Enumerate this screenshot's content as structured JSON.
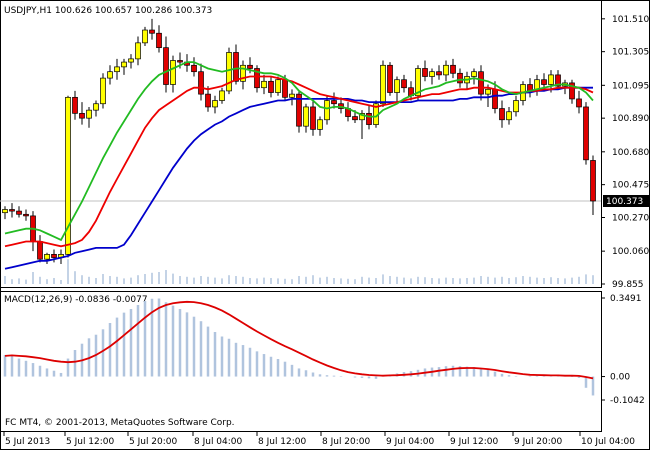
{
  "window": {
    "symbol_header": "USDJPY,H1  100.626 100.657 100.286 100.373",
    "copyright": "FC MT4, © 2001-2013, MetaQuotes Software Corp."
  },
  "colors": {
    "bull_candle": "#ffff00",
    "bear_candle": "#e00000",
    "candle_outline": "#000000",
    "ma_fast": "#22bb22",
    "ma_mid": "#ee0000",
    "ma_slow": "#0000cc",
    "volume": "#b0c4de",
    "macd_hist": "#b0c4de",
    "macd_signal": "#dd0000",
    "price_line": "#c0c0c0"
  },
  "chart_data": [
    {
      "type": "candlestick",
      "title": "USDJPY,H1  100.626 100.657 100.286 100.373",
      "ylim": [
        99.855,
        101.59
      ],
      "y_ticks": [
        "101.510",
        "101.305",
        "101.095",
        "100.890",
        "100.680",
        "100.475",
        "100.270",
        "100.060",
        "99.855"
      ],
      "current_price": "100.373",
      "x_ticks": [
        "5 Jul 2013",
        "5 Jul 12:00",
        "5 Jul 20:00",
        "8 Jul 04:00",
        "8 Jul 12:00",
        "8 Jul 20:00",
        "9 Jul 04:00",
        "9 Jul 12:00",
        "9 Jul 20:00",
        "10 Jul 04:00"
      ],
      "candles_ohlc": [
        [
          100.3,
          100.34,
          100.26,
          100.32
        ],
        [
          100.32,
          100.36,
          100.27,
          100.31
        ],
        [
          100.31,
          100.34,
          100.27,
          100.29
        ],
        [
          100.29,
          100.32,
          100.25,
          100.28
        ],
        [
          100.28,
          100.31,
          100.06,
          100.12
        ],
        [
          100.12,
          100.16,
          99.99,
          100.01
        ],
        [
          100.01,
          100.05,
          99.98,
          100.04
        ],
        [
          100.04,
          100.07,
          99.99,
          100.02
        ],
        [
          100.02,
          100.07,
          99.98,
          100.04
        ],
        [
          100.04,
          101.03,
          100.02,
          101.02
        ],
        [
          101.02,
          101.06,
          100.88,
          100.92
        ],
        [
          100.92,
          100.99,
          100.85,
          100.89
        ],
        [
          100.89,
          100.96,
          100.83,
          100.94
        ],
        [
          100.94,
          101.0,
          100.9,
          100.98
        ],
        [
          100.98,
          101.17,
          100.95,
          101.14
        ],
        [
          101.14,
          101.22,
          101.1,
          101.18
        ],
        [
          101.18,
          101.26,
          101.13,
          101.21
        ],
        [
          101.21,
          101.26,
          101.16,
          101.24
        ],
        [
          101.24,
          101.29,
          101.2,
          101.26
        ],
        [
          101.26,
          101.4,
          101.22,
          101.36
        ],
        [
          101.36,
          101.46,
          101.34,
          101.44
        ],
        [
          101.44,
          101.51,
          101.38,
          101.42
        ],
        [
          101.42,
          101.47,
          101.3,
          101.33
        ],
        [
          101.33,
          101.4,
          101.05,
          101.1
        ],
        [
          101.1,
          101.28,
          101.05,
          101.25
        ],
        [
          101.25,
          101.3,
          101.2,
          101.24
        ],
        [
          101.24,
          101.29,
          101.18,
          101.22
        ],
        [
          101.22,
          101.27,
          101.15,
          101.18
        ],
        [
          101.18,
          101.23,
          101.0,
          101.04
        ],
        [
          101.04,
          101.09,
          100.93,
          100.96
        ],
        [
          100.96,
          101.03,
          100.92,
          101.0
        ],
        [
          101.0,
          101.08,
          100.98,
          101.06
        ],
        [
          101.06,
          101.33,
          101.04,
          101.3
        ],
        [
          101.3,
          101.35,
          101.1,
          101.12
        ],
        [
          101.12,
          101.25,
          101.07,
          101.22
        ],
        [
          101.22,
          101.27,
          101.17,
          101.2
        ],
        [
          101.2,
          101.22,
          101.05,
          101.08
        ],
        [
          101.08,
          101.16,
          101.04,
          101.12
        ],
        [
          101.12,
          101.15,
          101.02,
          101.05
        ],
        [
          101.05,
          101.15,
          101.03,
          101.13
        ],
        [
          101.13,
          101.16,
          101.0,
          101.02
        ],
        [
          101.02,
          101.07,
          100.97,
          101.04
        ],
        [
          101.04,
          101.06,
          100.8,
          100.84
        ],
        [
          100.84,
          100.98,
          100.8,
          100.96
        ],
        [
          100.96,
          101.0,
          100.78,
          100.82
        ],
        [
          100.82,
          100.9,
          100.78,
          100.88
        ],
        [
          100.88,
          101.03,
          100.85,
          101.0
        ],
        [
          101.0,
          101.05,
          100.95,
          100.98
        ],
        [
          100.98,
          101.02,
          100.92,
          100.95
        ],
        [
          100.95,
          100.99,
          100.87,
          100.9
        ],
        [
          100.9,
          100.94,
          100.86,
          100.88
        ],
        [
          100.88,
          100.94,
          100.76,
          100.92
        ],
        [
          100.92,
          100.97,
          100.82,
          100.85
        ],
        [
          100.85,
          101.0,
          100.83,
          100.98
        ],
        [
          100.98,
          101.25,
          100.96,
          101.22
        ],
        [
          101.22,
          101.24,
          101.03,
          101.05
        ],
        [
          101.05,
          101.15,
          100.98,
          101.13
        ],
        [
          101.13,
          101.16,
          101.05,
          101.08
        ],
        [
          101.08,
          101.12,
          101.0,
          101.03
        ],
        [
          101.03,
          101.22,
          101.0,
          101.2
        ],
        [
          101.2,
          101.25,
          101.12,
          101.15
        ],
        [
          101.15,
          101.2,
          101.1,
          101.18
        ],
        [
          101.18,
          101.22,
          101.13,
          101.16
        ],
        [
          101.16,
          101.25,
          101.12,
          101.22
        ],
        [
          101.22,
          101.26,
          101.14,
          101.17
        ],
        [
          101.17,
          101.2,
          101.08,
          101.11
        ],
        [
          101.11,
          101.18,
          101.07,
          101.15
        ],
        [
          101.15,
          101.2,
          101.1,
          101.18
        ],
        [
          101.18,
          101.22,
          101.0,
          101.04
        ],
        [
          101.04,
          101.1,
          100.96,
          101.07
        ],
        [
          101.07,
          101.12,
          100.92,
          100.95
        ],
        [
          100.95,
          101.0,
          100.83,
          100.88
        ],
        [
          100.88,
          100.96,
          100.85,
          100.93
        ],
        [
          100.93,
          101.03,
          100.9,
          101.0
        ],
        [
          101.0,
          101.12,
          100.97,
          101.1
        ],
        [
          101.1,
          101.14,
          101.02,
          101.06
        ],
        [
          101.06,
          101.16,
          101.03,
          101.13
        ],
        [
          101.13,
          101.17,
          101.06,
          101.1
        ],
        [
          101.1,
          101.19,
          101.05,
          101.16
        ],
        [
          101.16,
          101.19,
          101.07,
          101.09
        ],
        [
          101.09,
          101.13,
          101.04,
          101.11
        ],
        [
          101.11,
          101.13,
          100.98,
          101.01
        ],
        [
          101.01,
          101.06,
          100.92,
          100.96
        ],
        [
          100.96,
          100.99,
          100.6,
          100.63
        ],
        [
          100.626,
          100.657,
          100.286,
          100.373
        ]
      ],
      "ma_fast": [
        100.17,
        100.18,
        100.19,
        100.2,
        100.2,
        100.19,
        100.17,
        100.15,
        100.13,
        100.21,
        100.29,
        100.37,
        100.46,
        100.55,
        100.64,
        100.72,
        100.8,
        100.87,
        100.94,
        101.01,
        101.07,
        101.12,
        101.16,
        101.18,
        101.2,
        101.22,
        101.24,
        101.24,
        101.22,
        101.2,
        101.19,
        101.18,
        101.19,
        101.2,
        101.2,
        101.19,
        101.18,
        101.17,
        101.17,
        101.16,
        101.14,
        101.11,
        101.06,
        101.03,
        101.0,
        100.96,
        100.95,
        100.96,
        100.96,
        100.95,
        100.93,
        100.91,
        100.9,
        100.9,
        100.94,
        100.96,
        100.98,
        101.01,
        101.03,
        101.05,
        101.07,
        101.08,
        101.09,
        101.11,
        101.12,
        101.13,
        101.13,
        101.14,
        101.13,
        101.12,
        101.1,
        101.07,
        101.05,
        101.04,
        101.05,
        101.06,
        101.07,
        101.08,
        101.09,
        101.1,
        101.1,
        101.09,
        101.08,
        101.05,
        101.0
      ],
      "ma_mid": [
        100.09,
        100.1,
        100.11,
        100.12,
        100.12,
        100.12,
        100.11,
        100.1,
        100.09,
        100.1,
        100.11,
        100.13,
        100.18,
        100.25,
        100.34,
        100.43,
        100.51,
        100.59,
        100.67,
        100.75,
        100.83,
        100.89,
        100.94,
        100.97,
        101.0,
        101.03,
        101.06,
        101.08,
        101.08,
        101.07,
        101.08,
        101.09,
        101.11,
        101.13,
        101.14,
        101.15,
        101.15,
        101.15,
        101.15,
        101.14,
        101.13,
        101.12,
        101.1,
        101.08,
        101.06,
        101.04,
        101.03,
        101.02,
        101.01,
        101.0,
        100.99,
        100.98,
        100.97,
        100.96,
        100.97,
        100.98,
        100.99,
        101.0,
        101.01,
        101.02,
        101.03,
        101.04,
        101.04,
        101.05,
        101.06,
        101.07,
        101.07,
        101.08,
        101.08,
        101.08,
        101.07,
        101.06,
        101.05,
        101.05,
        101.05,
        101.06,
        101.06,
        101.07,
        101.07,
        101.08,
        101.08,
        101.08,
        101.08,
        101.07,
        101.05
      ],
      "ma_slow": [
        99.95,
        99.96,
        99.97,
        99.98,
        99.99,
        100.0,
        100.0,
        100.01,
        100.02,
        100.03,
        100.05,
        100.06,
        100.07,
        100.08,
        100.08,
        100.08,
        100.08,
        100.1,
        100.16,
        100.23,
        100.3,
        100.37,
        100.44,
        100.51,
        100.58,
        100.64,
        100.7,
        100.75,
        100.79,
        100.82,
        100.85,
        100.87,
        100.9,
        100.92,
        100.94,
        100.96,
        100.97,
        100.98,
        100.99,
        101.0,
        101.0,
        101.01,
        101.01,
        101.01,
        101.01,
        101.01,
        101.01,
        101.01,
        101.01,
        101.01,
        101.0,
        101.0,
        100.99,
        100.99,
        100.99,
        100.99,
        100.99,
        100.99,
        100.99,
        101.0,
        101.0,
        101.0,
        101.0,
        101.0,
        101.0,
        101.01,
        101.01,
        101.02,
        101.02,
        101.02,
        101.03,
        101.03,
        101.04,
        101.04,
        101.05,
        101.05,
        101.06,
        101.06,
        101.07,
        101.07,
        101.08,
        101.08,
        101.08,
        101.08,
        101.08
      ],
      "volume": [
        0.2,
        0.12,
        0.14,
        0.11,
        0.3,
        0.18,
        0.12,
        0.15,
        0.1,
        0.62,
        0.32,
        0.22,
        0.18,
        0.15,
        0.25,
        0.2,
        0.18,
        0.14,
        0.16,
        0.22,
        0.25,
        0.28,
        0.3,
        0.35,
        0.26,
        0.2,
        0.18,
        0.16,
        0.2,
        0.18,
        0.16,
        0.14,
        0.22,
        0.2,
        0.18,
        0.15,
        0.14,
        0.16,
        0.15,
        0.14,
        0.13,
        0.12,
        0.2,
        0.18,
        0.22,
        0.16,
        0.18,
        0.15,
        0.14,
        0.13,
        0.12,
        0.18,
        0.16,
        0.15,
        0.24,
        0.2,
        0.18,
        0.16,
        0.14,
        0.18,
        0.17,
        0.15,
        0.14,
        0.16,
        0.15,
        0.14,
        0.15,
        0.16,
        0.2,
        0.18,
        0.16,
        0.18,
        0.15,
        0.17,
        0.2,
        0.18,
        0.16,
        0.15,
        0.17,
        0.15,
        0.14,
        0.16,
        0.18,
        0.24,
        0.22
      ]
    },
    {
      "type": "bar",
      "title": "MACD(12,26,9) -0.0836 -0.0077",
      "ylim": [
        -0.1042,
        0.3491
      ],
      "y_ticks": [
        "0.3491",
        "0.00",
        "-0.1042"
      ],
      "histogram": [
        0.096,
        0.091,
        0.08,
        0.07,
        0.06,
        0.048,
        0.036,
        0.026,
        0.016,
        0.08,
        0.118,
        0.146,
        0.17,
        0.186,
        0.21,
        0.238,
        0.262,
        0.284,
        0.3,
        0.318,
        0.336,
        0.346,
        0.347,
        0.33,
        0.315,
        0.3,
        0.285,
        0.266,
        0.246,
        0.222,
        0.198,
        0.178,
        0.168,
        0.15,
        0.14,
        0.128,
        0.112,
        0.1,
        0.088,
        0.078,
        0.066,
        0.052,
        0.036,
        0.028,
        0.018,
        0.01,
        0.006,
        0.004,
        0.002,
        0.0,
        -0.004,
        -0.006,
        -0.008,
        -0.01,
        0.004,
        0.008,
        0.014,
        0.02,
        0.024,
        0.03,
        0.036,
        0.04,
        0.042,
        0.046,
        0.048,
        0.046,
        0.044,
        0.042,
        0.036,
        0.03,
        0.022,
        0.012,
        0.006,
        0.002,
        0.0,
        0.002,
        0.004,
        0.006,
        0.006,
        0.004,
        0.002,
        -0.002,
        -0.006,
        -0.05,
        -0.084
      ],
      "signal": [
        0.092,
        0.094,
        0.092,
        0.09,
        0.086,
        0.082,
        0.076,
        0.07,
        0.066,
        0.064,
        0.066,
        0.072,
        0.082,
        0.096,
        0.114,
        0.134,
        0.158,
        0.184,
        0.21,
        0.236,
        0.262,
        0.286,
        0.305,
        0.318,
        0.326,
        0.33,
        0.332,
        0.331,
        0.326,
        0.318,
        0.307,
        0.293,
        0.276,
        0.257,
        0.238,
        0.219,
        0.2,
        0.183,
        0.166,
        0.15,
        0.135,
        0.121,
        0.106,
        0.091,
        0.076,
        0.062,
        0.049,
        0.038,
        0.028,
        0.02,
        0.014,
        0.01,
        0.007,
        0.005,
        0.004,
        0.005,
        0.006,
        0.008,
        0.01,
        0.013,
        0.017,
        0.021,
        0.026,
        0.03,
        0.034,
        0.037,
        0.038,
        0.038,
        0.036,
        0.033,
        0.029,
        0.024,
        0.019,
        0.015,
        0.011,
        0.008,
        0.007,
        0.006,
        0.005,
        0.005,
        0.004,
        0.004,
        0.003,
        -0.002,
        -0.008
      ]
    }
  ]
}
